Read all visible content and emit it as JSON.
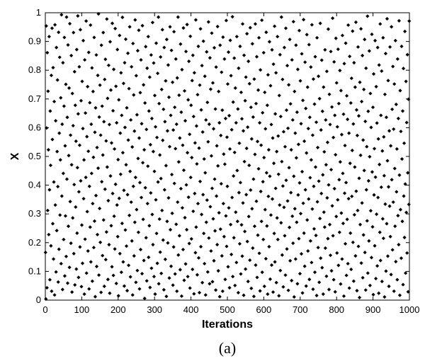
{
  "chart_data": {
    "type": "scatter",
    "xlabel": "Iterations",
    "ylabel": "X",
    "caption": "(a)",
    "xlim": [
      0,
      1000
    ],
    "ylim": [
      0,
      1
    ],
    "x_ticks": [
      "0",
      "100",
      "200",
      "300",
      "400",
      "500",
      "600",
      "700",
      "800",
      "900",
      "1000"
    ],
    "y_ticks": [
      "0",
      "0.1",
      "0.2",
      "0.3",
      "0.4",
      "0.5",
      "0.6",
      "0.7",
      "0.8",
      "0.9",
      "1"
    ],
    "marker": "diamond",
    "marker_color": "#000000",
    "grid": false,
    "legend": "none",
    "series": [
      {
        "values": [
          0.166,
          0.004,
          0.954,
          0.599,
          0.043,
          0.861,
          0.312,
          0.727,
          0.523,
          0.228,
          0.917,
          0.384,
          0.071,
          0.658,
          0.469,
          0.189,
          0.782,
          0.031,
          0.946,
          0.559,
          0.266,
          0.809,
          0.143,
          0.411,
          0.691,
          0.018,
          0.958,
          0.331,
          0.624,
          0.098,
          0.879,
          0.242,
          0.517,
          0.766,
          0.395,
          0.063,
          0.932,
          0.177,
          0.581,
          0.845,
          0.296,
          0.488,
          0.704,
          0.127,
          0.993,
          0.362,
          0.612,
          0.037,
          0.826,
          0.441,
          0.211,
          0.675,
          0.914,
          0.084,
          0.537,
          0.293,
          0.751,
          0.152,
          0.985,
          0.421,
          0.636,
          0.059,
          0.888,
          0.257,
          0.503,
          0.738,
          0.114,
          0.962,
          0.343,
          0.574,
          0.198,
          0.851,
          0.471,
          0.028,
          0.719,
          0.286,
          0.607,
          0.931,
          0.162,
          0.402,
          0.795,
          0.053,
          0.678,
          0.324,
          0.553,
          0.108,
          0.872,
          0.233,
          0.461,
          0.989,
          0.648,
          0.079,
          0.377,
          0.812,
          0.539,
          0.185,
          0.941,
          0.415,
          0.694,
          0.047,
          0.261,
          0.761,
          0.128,
          0.597,
          0.903,
          0.353,
          0.488,
          0.021,
          0.836,
          0.212,
          0.651,
          0.427,
          0.971,
          0.094,
          0.569,
          0.308,
          0.743,
          0.171,
          0.518,
          0.862,
          0.039,
          0.396,
          0.687,
          0.254,
          0.957,
          0.133,
          0.612,
          0.441,
          0.808,
          0.066,
          0.336,
          0.726,
          0.497,
          0.183,
          0.914,
          0.275,
          0.584,
          0.012,
          0.669,
          0.364,
          0.853,
          0.117,
          0.531,
          0.228,
          0.782,
          0.459,
          0.996,
          0.087,
          0.637,
          0.319,
          0.748,
          0.201,
          0.574,
          0.027,
          0.887,
          0.412,
          0.675,
          0.155,
          0.505,
          0.931,
          0.279,
          0.621,
          0.048,
          0.768,
          0.386,
          0.838,
          0.141,
          0.554,
          0.237,
          0.978,
          0.463,
          0.702,
          0.072,
          0.346,
          0.817,
          0.193,
          0.611,
          0.024,
          0.899,
          0.432,
          0.731,
          0.259,
          0.547,
          0.116,
          0.963,
          0.371,
          0.659,
          0.086,
          0.803,
          0.292,
          0.526,
          0.178,
          0.945,
          0.403,
          0.744,
          0.058,
          0.617,
          0.331,
          0.872,
          0.221,
          0.489,
          0.015,
          0.697,
          0.354,
          0.921,
          0.162,
          0.581,
          0.438,
          0.791,
          0.097,
          0.643,
          0.267,
          0.984,
          0.513,
          0.133,
          0.754,
          0.382,
          0.049,
          0.826,
          0.601,
          0.244,
          0.908,
          0.471,
          0.188,
          0.669,
          0.033,
          0.367,
          0.859,
          0.557,
          0.121,
          0.736,
          0.295,
          0.951,
          0.448,
          0.081,
          0.627,
          0.341,
          0.812,
          0.206,
          0.533,
          0.018,
          0.893,
          0.396,
          0.714,
          0.154,
          0.588,
          0.271,
          0.975,
          0.427,
          0.062,
          0.781,
          0.315,
          0.645,
          0.103,
          0.868,
          0.493,
          0.236,
          0.939,
          0.564,
          0.039,
          0.409,
          0.722,
          0.176,
          0.836,
          0.357,
          0.614,
          0.092,
          0.955,
          0.478,
          0.281,
          0.749,
          0.138,
          0.523,
          0.006,
          0.686,
          0.391,
          0.882,
          0.217,
          0.594,
          0.067,
          0.807,
          0.336,
          0.466,
          0.917,
          0.149,
          0.658,
          0.259,
          0.776,
          0.044,
          0.541,
          0.373,
          0.853,
          0.111,
          0.632,
          0.298,
          0.966,
          0.193,
          0.517,
          0.825,
          0.082,
          0.448,
          0.712,
          0.021,
          0.603,
          0.349,
          0.894,
          0.232,
          0.566,
          0.128,
          0.789,
          0.411,
          0.985,
          0.057,
          0.684,
          0.282,
          0.505,
          0.167,
          0.846,
          0.423,
          0.093,
          0.733,
          0.312,
          0.941,
          0.556,
          0.209,
          0.664,
          0.036,
          0.879,
          0.384,
          0.621,
          0.142,
          0.763,
          0.468,
          0.013,
          0.907,
          0.274,
          0.589,
          0.199,
          0.818,
          0.356,
          0.706,
          0.077,
          0.534,
          0.951,
          0.245,
          0.643,
          0.118,
          0.869,
          0.437,
          0.302,
          0.758,
          0.052,
          0.592,
          0.185,
          0.934,
          0.406,
          0.671,
          0.091,
          0.527,
          0.839,
          0.264,
          0.612,
          0.031,
          0.773,
          0.341,
          0.985,
          0.157,
          0.481,
          0.713,
          0.224,
          0.564,
          0.106,
          0.891,
          0.388,
          0.654,
          0.014,
          0.802,
          0.321,
          0.539,
          0.176,
          0.947,
          0.452,
          0.069,
          0.728,
          0.287,
          0.624,
          0.126,
          0.865,
          0.401,
          0.245,
          0.959,
          0.513,
          0.082,
          0.697,
          0.358,
          0.831,
          0.197,
          0.577,
          0.042,
          0.918,
          0.427,
          0.678,
          0.213,
          0.496,
          0.764,
          0.107,
          0.852,
          0.309,
          0.639,
          0.022,
          0.791,
          0.371,
          0.547,
          0.165,
          0.975,
          0.254,
          0.606,
          0.474,
          0.088,
          0.715,
          0.336,
          0.883,
          0.147,
          0.529,
          0.026,
          0.748,
          0.413,
          0.944,
          0.186,
          0.662,
          0.298,
          0.816,
          0.061,
          0.585,
          0.367,
          0.901,
          0.232,
          0.491,
          0.127,
          0.779,
          0.443,
          0.018,
          0.627,
          0.271,
          0.864,
          0.348,
          0.688,
          0.098,
          0.551,
          0.968,
          0.216,
          0.612,
          0.057,
          0.843,
          0.325,
          0.734,
          0.171,
          0.502,
          0.929,
          0.389,
          0.064,
          0.756,
          0.283,
          0.596,
          0.137,
          0.878,
          0.421,
          0.241,
          0.665,
          0.035,
          0.811,
          0.362,
          0.537,
          0.193,
          0.952,
          0.467,
          0.102,
          0.726,
          0.304,
          0.617,
          0.012,
          0.887,
          0.247,
          0.573,
          0.405,
          0.793,
          0.154,
          0.661,
          0.031,
          0.915,
          0.336,
          0.508,
          0.221,
          0.839,
          0.473,
          0.072,
          0.632,
          0.293,
          0.973,
          0.187,
          0.567,
          0.396,
          0.752,
          0.116,
          0.863,
          0.321,
          0.642,
          0.043,
          0.526,
          0.904,
          0.263,
          0.781,
          0.159,
          0.593,
          0.357,
          0.986,
          0.082,
          0.689,
          0.432,
          0.217,
          0.842,
          0.514,
          0.051,
          0.738,
          0.306,
          0.617,
          0.131,
          0.917,
          0.451,
          0.274,
          0.665,
          0.026,
          0.807,
          0.374,
          0.546,
          0.196,
          0.883,
          0.409,
          0.091,
          0.723,
          0.262,
          0.631,
          0.153,
          0.961,
          0.338,
          0.589,
          0.017,
          0.852,
          0.482,
          0.239,
          0.694,
          0.108,
          0.776,
          0.367,
          0.528,
          0.927,
          0.204,
          0.602,
          0.065,
          0.831,
          0.291,
          0.469,
          0.753,
          0.139,
          0.948,
          0.383,
          0.671,
          0.041,
          0.561,
          0.318,
          0.892,
          0.181,
          0.637,
          0.421,
          0.013,
          0.769,
          0.257,
          0.507,
          0.961,
          0.122,
          0.684,
          0.344,
          0.847,
          0.079,
          0.552,
          0.226,
          0.731,
          0.457,
          0.913,
          0.163,
          0.617,
          0.032,
          0.801,
          0.378,
          0.539,
          0.274,
          0.974,
          0.097,
          0.652,
          0.412,
          0.211,
          0.861,
          0.496,
          0.048,
          0.723,
          0.315,
          0.596,
          0.144,
          0.932,
          0.443,
          0.258,
          0.678,
          0.021,
          0.784,
          0.361,
          0.523,
          0.186,
          0.899,
          0.431,
          0.073,
          0.746,
          0.296,
          0.611,
          0.122,
          0.871,
          0.352,
          0.564,
          0.028,
          0.821,
          0.476,
          0.232,
          0.953,
          0.133,
          0.648,
          0.389,
          0.791,
          0.061,
          0.517,
          0.286,
          0.917,
          0.211,
          0.571,
          0.438,
          0.015,
          0.712,
          0.331,
          0.854,
          0.103,
          0.639,
          0.269,
          0.985,
          0.482,
          0.157,
          0.768,
          0.397,
          0.046,
          0.586,
          0.323,
          0.879,
          0.224,
          0.534,
          0.087,
          0.946,
          0.417,
          0.661,
          0.178,
          0.816,
          0.345,
          0.598,
          0.034,
          0.749,
          0.461,
          0.253,
          0.907,
          0.137,
          0.683,
          0.374,
          0.523,
          0.068,
          0.836,
          0.292,
          0.627,
          0.198,
          0.969,
          0.431,
          0.011,
          0.726,
          0.318,
          0.581,
          0.143,
          0.887,
          0.495,
          0.271,
          0.654,
          0.057,
          0.803,
          0.366,
          0.542,
          0.214,
          0.938,
          0.408,
          0.092,
          0.763,
          0.301,
          0.614,
          0.161,
          0.857,
          0.447,
          0.025,
          0.695,
          0.337,
          0.976,
          0.233,
          0.553,
          0.118,
          0.828,
          0.384,
          0.667,
          0.049,
          0.512,
          0.924,
          0.279,
          0.741,
          0.171,
          0.597,
          0.352,
          0.889,
          0.072,
          0.636,
          0.426,
          0.206,
          0.811,
          0.488,
          0.131,
          0.958,
          0.317,
          0.574,
          0.038,
          0.769,
          0.396,
          0.248,
          0.682,
          0.097,
          0.847,
          0.463,
          0.225,
          0.619,
          0.016,
          0.913,
          0.342,
          0.531,
          0.183,
          0.779,
          0.414,
          0.062,
          0.701,
          0.284,
          0.963,
          0.146,
          0.592,
          0.371,
          0.835,
          0.113,
          0.657,
          0.436,
          0.021,
          0.741,
          0.306,
          0.516,
          0.254,
          0.871,
          0.181,
          0.627,
          0.471,
          0.083,
          0.796,
          0.356,
          0.549,
          0.214,
          0.943,
          0.401,
          0.037,
          0.716,
          0.263,
          0.611,
          0.156,
          0.865,
          0.454,
          0.102,
          0.672,
          0.328,
          0.981,
          0.224,
          0.566,
          0.071,
          0.829,
          0.388,
          0.643,
          0.029,
          0.506,
          0.911,
          0.291,
          0.756,
          0.164,
          0.603,
          0.349,
          0.873,
          0.121,
          0.684,
          0.419,
          0.236,
          0.799,
          0.481,
          0.056,
          0.729,
          0.303,
          0.576,
          0.143,
          0.921,
          0.441,
          0.267,
          0.647,
          0.014,
          0.823,
          0.372,
          0.538,
          0.196,
          0.894,
          0.409,
          0.086,
          0.711,
          0.281,
          0.629,
          0.127,
          0.957,
          0.353,
          0.581,
          0.042,
          0.848,
          0.476,
          0.233,
          0.686,
          0.107,
          0.772,
          0.361,
          0.521,
          0.936,
          0.201,
          0.613,
          0.066,
          0.826,
          0.297,
          0.463,
          0.741,
          0.154,
          0.967,
          0.379,
          0.662,
          0.033,
          0.573,
          0.312,
          0.881,
          0.187,
          0.641,
          0.424,
          0.009,
          0.758,
          0.263,
          0.504,
          0.944,
          0.129,
          0.691,
          0.338,
          0.851,
          0.078,
          0.557,
          0.227,
          0.733,
          0.451,
          0.907,
          0.166,
          0.622,
          0.035,
          0.807,
          0.384,
          0.534,
          0.276,
          0.988,
          0.094,
          0.657,
          0.415,
          0.206,
          0.867,
          0.499,
          0.051,
          0.719,
          0.311,
          0.601,
          0.148,
          0.925,
          0.446,
          0.255,
          0.671,
          0.019,
          0.787,
          0.366,
          0.527,
          0.189,
          0.903,
          0.428,
          0.075,
          0.743,
          0.299,
          0.616,
          0.119,
          0.879,
          0.357,
          0.561,
          0.024,
          0.818,
          0.472,
          0.236,
          0.961,
          0.138,
          0.643,
          0.393,
          0.797,
          0.065,
          0.519,
          0.283,
          0.913,
          0.215,
          0.568,
          0.433,
          0.011,
          0.716,
          0.334,
          0.858,
          0.101,
          0.636,
          0.266,
          0.979,
          0.485,
          0.153,
          0.764,
          0.394,
          0.048,
          0.589,
          0.327,
          0.881,
          0.221,
          0.537,
          0.089,
          0.951,
          0.419,
          0.664,
          0.175,
          0.813,
          0.341,
          0.595,
          0.031,
          0.752,
          0.458,
          0.257,
          0.903,
          0.134,
          0.681,
          0.377,
          0.526,
          0.071,
          0.839,
          0.294,
          0.632,
          0.193,
          0.972,
          0.435,
          0.017,
          0.729,
          0.315,
          0.587,
          0.146,
          0.883,
          0.491,
          0.274,
          0.658,
          0.054,
          0.806,
          0.362,
          0.546,
          0.218,
          0.935,
          0.404,
          0.094,
          0.761,
          0.305,
          0.618,
          0.164,
          0.854,
          0.443,
          0.029,
          0.699,
          0.333,
          0.971
        ]
      }
    ]
  }
}
